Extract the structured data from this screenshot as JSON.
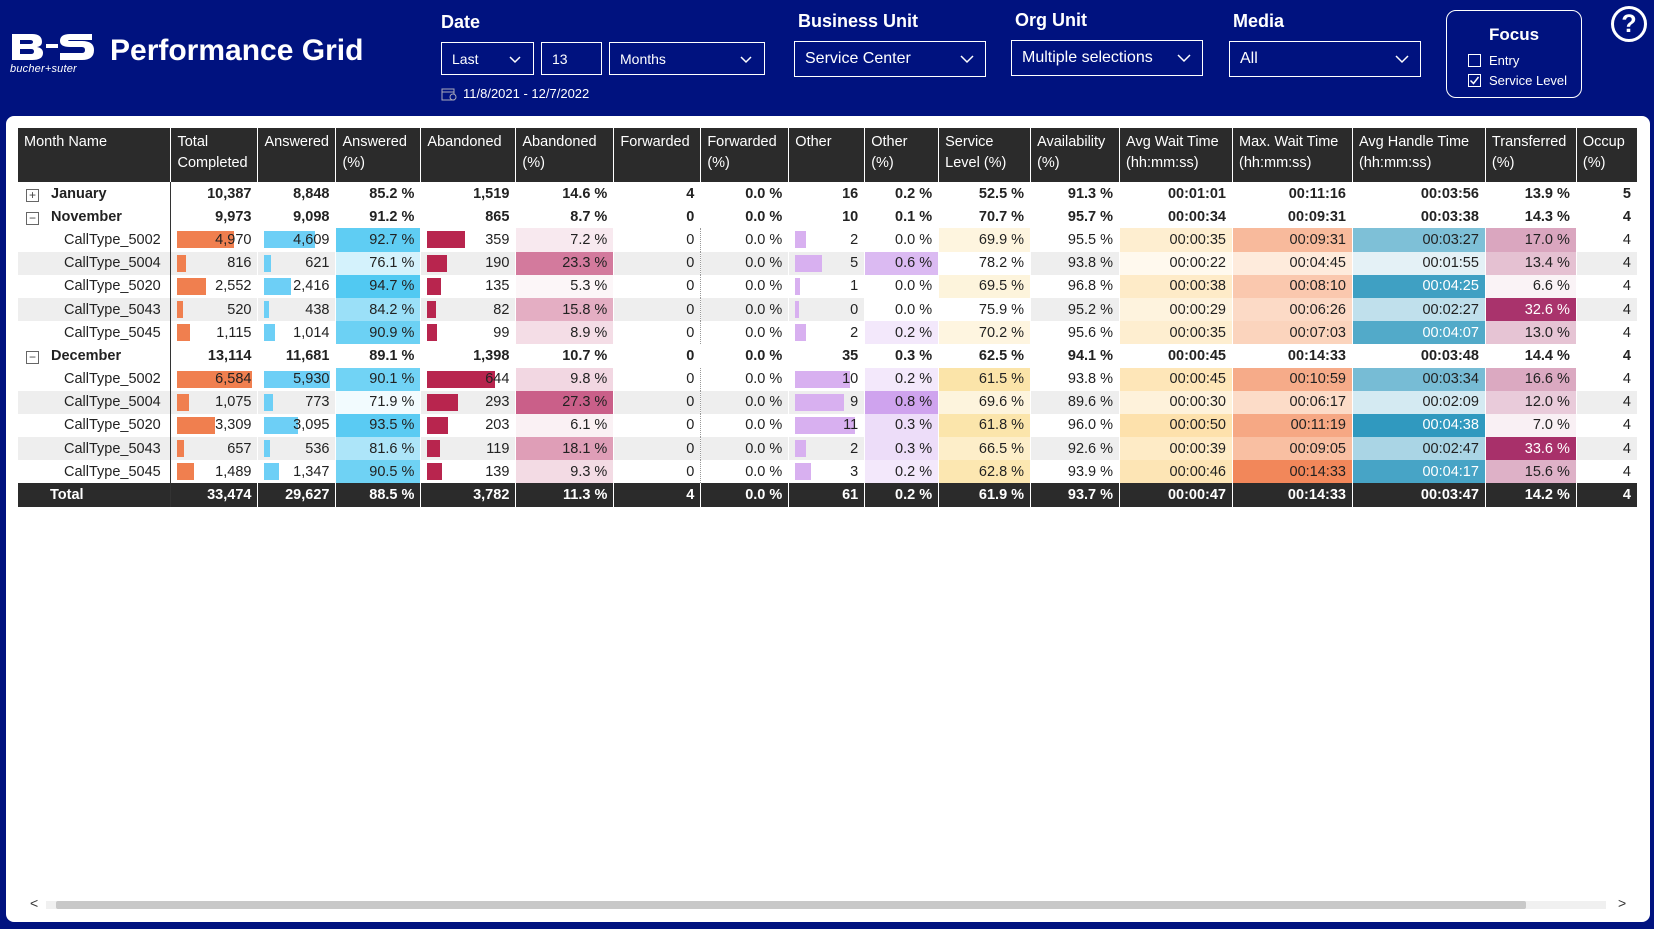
{
  "app": {
    "logo_text": "bucher+suter",
    "title": "Performance Grid"
  },
  "filters": {
    "date_label": "Date",
    "date_mode": "Last",
    "date_count": "13",
    "date_unit": "Months",
    "date_range": "11/8/2021 - 12/7/2022",
    "business_unit_label": "Business Unit",
    "business_unit_value": "Service Center",
    "org_unit_label": "Org Unit",
    "org_unit_value": "Multiple selections",
    "media_label": "Media",
    "media_value": "All"
  },
  "focus": {
    "title": "Focus",
    "options": [
      {
        "label": "Entry",
        "checked": false
      },
      {
        "label": "Service Level",
        "checked": true
      }
    ]
  },
  "help_icon": "?",
  "table": {
    "columns": [
      "Month Name",
      "Total Completed",
      "Answered",
      "Answered (%)",
      "Abandoned",
      "Abandoned (%)",
      "Forwarded",
      "Forwarded (%)",
      "Other",
      "Other (%)",
      "Service Level (%)",
      "Availability (%)",
      "Avg Wait Time (hh:mm:ss)",
      "Max. Wait Time (hh:mm:ss)",
      "Avg Handle Time (hh:mm:ss)",
      "Transferred (%)",
      "Occupancy (%)"
    ],
    "column_headers": [
      [
        "Month Name",
        ""
      ],
      [
        "Total",
        "Completed"
      ],
      [
        "Answered",
        ""
      ],
      [
        "Answered",
        "(%)"
      ],
      [
        "Abandoned",
        ""
      ],
      [
        "Abandoned",
        "(%)"
      ],
      [
        "Forwarded",
        ""
      ],
      [
        "Forwarded",
        "(%)"
      ],
      [
        "Other",
        ""
      ],
      [
        "Other",
        "(%)"
      ],
      [
        "Service",
        "Level (%)"
      ],
      [
        "Availability",
        "(%)"
      ],
      [
        "Avg Wait Time",
        "(hh:mm:ss)"
      ],
      [
        "Max. Wait Time",
        "(hh:mm:ss)"
      ],
      [
        "Avg Handle Time",
        "(hh:mm:ss)"
      ],
      [
        "Transferred",
        "(%)"
      ],
      [
        "Occup",
        "(%)"
      ]
    ],
    "rows": [
      {
        "type": "group",
        "expanded": false,
        "name": "January",
        "total_completed": "10,387",
        "answered": "8,848",
        "answered_pct": "85.2 %",
        "abandoned": "1,519",
        "abandoned_pct": "14.6 %",
        "forwarded": "4",
        "forwarded_pct": "0.0 %",
        "other": "16",
        "other_pct": "0.2 %",
        "service_level": "52.5 %",
        "availability": "91.3 %",
        "avg_wait": "00:01:01",
        "max_wait": "00:11:16",
        "avg_handle": "00:03:56",
        "transferred": "13.9 %",
        "occupancy": "5"
      },
      {
        "type": "group",
        "expanded": true,
        "name": "November",
        "total_completed": "9,973",
        "answered": "9,098",
        "answered_pct": "91.2 %",
        "abandoned": "865",
        "abandoned_pct": "8.7 %",
        "forwarded": "0",
        "forwarded_pct": "0.0 %",
        "other": "10",
        "other_pct": "0.1 %",
        "service_level": "70.7 %",
        "availability": "95.7 %",
        "avg_wait": "00:00:34",
        "max_wait": "00:09:31",
        "avg_handle": "00:03:38",
        "transferred": "14.3 %",
        "occupancy": "4"
      },
      {
        "type": "child",
        "name": "CallType_5002",
        "total_completed": "4,970",
        "answered": "4,609",
        "answered_pct": "92.7 %",
        "abandoned": "359",
        "abandoned_pct": "7.2 %",
        "forwarded": "0",
        "forwarded_pct": "0.0 %",
        "other": "2",
        "other_pct": "0.0 %",
        "service_level": "69.9 %",
        "availability": "95.5 %",
        "avg_wait": "00:00:35",
        "max_wait": "00:09:31",
        "avg_handle": "00:03:27",
        "transferred": "17.0 %",
        "occupancy": "4"
      },
      {
        "type": "child",
        "name": "CallType_5004",
        "total_completed": "816",
        "answered": "621",
        "answered_pct": "76.1 %",
        "abandoned": "190",
        "abandoned_pct": "23.3 %",
        "forwarded": "0",
        "forwarded_pct": "0.0 %",
        "other": "5",
        "other_pct": "0.6 %",
        "service_level": "78.2 %",
        "availability": "93.8 %",
        "avg_wait": "00:00:22",
        "max_wait": "00:04:45",
        "avg_handle": "00:01:55",
        "transferred": "13.4 %",
        "occupancy": "4"
      },
      {
        "type": "child",
        "name": "CallType_5020",
        "total_completed": "2,552",
        "answered": "2,416",
        "answered_pct": "94.7 %",
        "abandoned": "135",
        "abandoned_pct": "5.3 %",
        "forwarded": "0",
        "forwarded_pct": "0.0 %",
        "other": "1",
        "other_pct": "0.0 %",
        "service_level": "69.5 %",
        "availability": "96.8 %",
        "avg_wait": "00:00:38",
        "max_wait": "00:08:10",
        "avg_handle": "00:04:25",
        "transferred": "6.6 %",
        "occupancy": "4"
      },
      {
        "type": "child",
        "name": "CallType_5043",
        "total_completed": "520",
        "answered": "438",
        "answered_pct": "84.2 %",
        "abandoned": "82",
        "abandoned_pct": "15.8 %",
        "forwarded": "0",
        "forwarded_pct": "0.0 %",
        "other": "0",
        "other_pct": "0.0 %",
        "service_level": "75.9 %",
        "availability": "95.2 %",
        "avg_wait": "00:00:29",
        "max_wait": "00:06:26",
        "avg_handle": "00:02:27",
        "transferred": "32.6 %",
        "occupancy": "4"
      },
      {
        "type": "child",
        "name": "CallType_5045",
        "total_completed": "1,115",
        "answered": "1,014",
        "answered_pct": "90.9 %",
        "abandoned": "99",
        "abandoned_pct": "8.9 %",
        "forwarded": "0",
        "forwarded_pct": "0.0 %",
        "other": "2",
        "other_pct": "0.2 %",
        "service_level": "70.2 %",
        "availability": "95.6 %",
        "avg_wait": "00:00:35",
        "max_wait": "00:07:03",
        "avg_handle": "00:04:07",
        "transferred": "13.0 %",
        "occupancy": "4"
      },
      {
        "type": "group",
        "expanded": true,
        "name": "December",
        "total_completed": "13,114",
        "answered": "11,681",
        "answered_pct": "89.1 %",
        "abandoned": "1,398",
        "abandoned_pct": "10.7 %",
        "forwarded": "0",
        "forwarded_pct": "0.0 %",
        "other": "35",
        "other_pct": "0.3 %",
        "service_level": "62.5 %",
        "availability": "94.1 %",
        "avg_wait": "00:00:45",
        "max_wait": "00:14:33",
        "avg_handle": "00:03:48",
        "transferred": "14.4 %",
        "occupancy": "4"
      },
      {
        "type": "child",
        "name": "CallType_5002",
        "total_completed": "6,584",
        "answered": "5,930",
        "answered_pct": "90.1 %",
        "abandoned": "644",
        "abandoned_pct": "9.8 %",
        "forwarded": "0",
        "forwarded_pct": "0.0 %",
        "other": "10",
        "other_pct": "0.2 %",
        "service_level": "61.5 %",
        "availability": "93.8 %",
        "avg_wait": "00:00:45",
        "max_wait": "00:10:59",
        "avg_handle": "00:03:34",
        "transferred": "16.6 %",
        "occupancy": "4"
      },
      {
        "type": "child",
        "name": "CallType_5004",
        "total_completed": "1,075",
        "answered": "773",
        "answered_pct": "71.9 %",
        "abandoned": "293",
        "abandoned_pct": "27.3 %",
        "forwarded": "0",
        "forwarded_pct": "0.0 %",
        "other": "9",
        "other_pct": "0.8 %",
        "service_level": "69.6 %",
        "availability": "89.6 %",
        "avg_wait": "00:00:30",
        "max_wait": "00:06:17",
        "avg_handle": "00:02:09",
        "transferred": "12.0 %",
        "occupancy": "4"
      },
      {
        "type": "child",
        "name": "CallType_5020",
        "total_completed": "3,309",
        "answered": "3,095",
        "answered_pct": "93.5 %",
        "abandoned": "203",
        "abandoned_pct": "6.1 %",
        "forwarded": "0",
        "forwarded_pct": "0.0 %",
        "other": "11",
        "other_pct": "0.3 %",
        "service_level": "61.8 %",
        "availability": "96.0 %",
        "avg_wait": "00:00:50",
        "max_wait": "00:11:19",
        "avg_handle": "00:04:38",
        "transferred": "7.0 %",
        "occupancy": "4"
      },
      {
        "type": "child",
        "name": "CallType_5043",
        "total_completed": "657",
        "answered": "536",
        "answered_pct": "81.6 %",
        "abandoned": "119",
        "abandoned_pct": "18.1 %",
        "forwarded": "0",
        "forwarded_pct": "0.0 %",
        "other": "2",
        "other_pct": "0.3 %",
        "service_level": "66.5 %",
        "availability": "92.6 %",
        "avg_wait": "00:00:39",
        "max_wait": "00:09:05",
        "avg_handle": "00:02:47",
        "transferred": "33.6 %",
        "occupancy": "4"
      },
      {
        "type": "child",
        "name": "CallType_5045",
        "total_completed": "1,489",
        "answered": "1,347",
        "answered_pct": "90.5 %",
        "abandoned": "139",
        "abandoned_pct": "9.3 %",
        "forwarded": "0",
        "forwarded_pct": "0.0 %",
        "other": "3",
        "other_pct": "0.2 %",
        "service_level": "62.8 %",
        "availability": "93.9 %",
        "avg_wait": "00:00:46",
        "max_wait": "00:14:33",
        "avg_handle": "00:04:17",
        "transferred": "15.6 %",
        "occupancy": "4"
      },
      {
        "type": "total",
        "name": "Total",
        "total_completed": "33,474",
        "answered": "29,627",
        "answered_pct": "88.5 %",
        "abandoned": "3,782",
        "abandoned_pct": "11.3 %",
        "forwarded": "4",
        "forwarded_pct": "0.0 %",
        "other": "61",
        "other_pct": "0.2 %",
        "service_level": "61.9 %",
        "availability": "93.7 %",
        "avg_wait": "00:00:47",
        "max_wait": "00:14:33",
        "avg_handle": "00:03:47",
        "transferred": "14.2 %",
        "occupancy": "4"
      }
    ]
  },
  "colors": {
    "header_bg": "#00127F",
    "table_header_bg": "#2B2B2B",
    "total_completed_bar": "#F07F4F",
    "answered_bar": "#6DCFF6",
    "abandoned_bar": "#B8254E",
    "other_bar": "#D8B0F0"
  },
  "scroll": {
    "left_arrow": "<",
    "right_arrow": ">"
  }
}
